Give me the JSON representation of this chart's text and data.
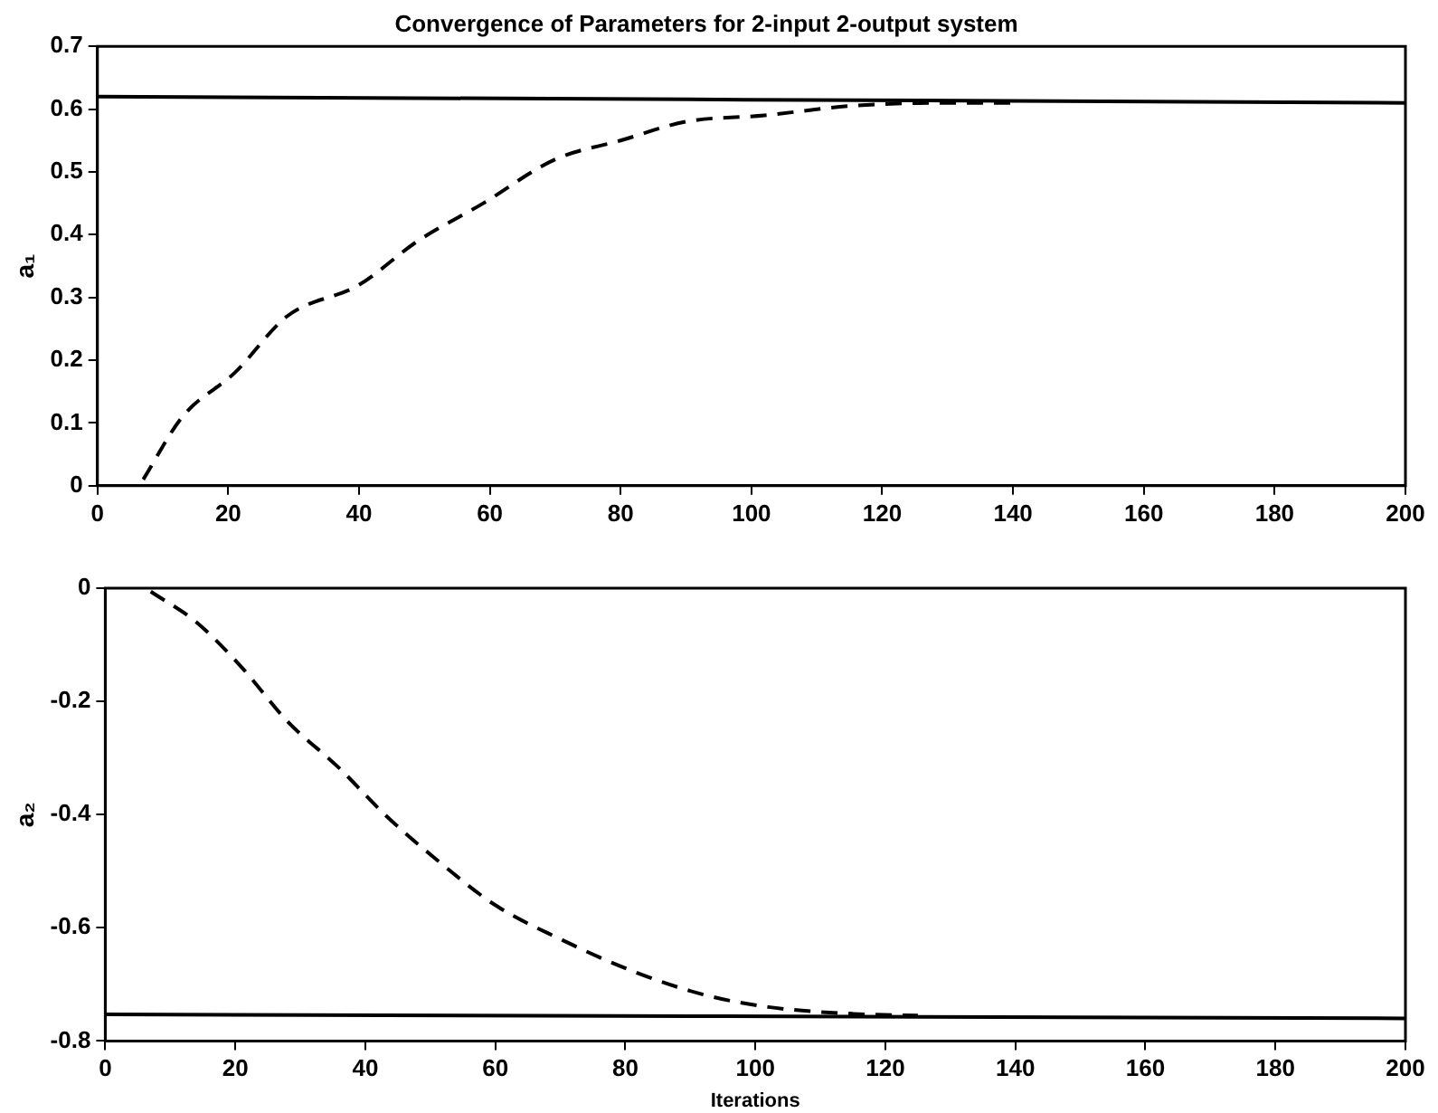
{
  "chart_data": [
    {
      "type": "line",
      "title": "Convergence of Parameters for 2-input 2-output system",
      "ylabel": "a₁",
      "xlim": [
        0,
        200
      ],
      "ylim": [
        0,
        0.7
      ],
      "xticks": [
        0,
        20,
        40,
        60,
        80,
        100,
        120,
        140,
        160,
        180,
        200
      ],
      "yticks": [
        0,
        0.1,
        0.2,
        0.3,
        0.4,
        0.5,
        0.6,
        0.7
      ],
      "grid": false,
      "legend": false,
      "marker": "none",
      "series": [
        {
          "color": "#000000",
          "line_style": "solid",
          "x": [
            0,
            200
          ],
          "values": [
            0.62,
            0.61
          ]
        },
        {
          "color": "#000000",
          "line_style": "dashed",
          "x": [
            7,
            13,
            21,
            29,
            40,
            49,
            59,
            70,
            80,
            90,
            102,
            115,
            130,
            140
          ],
          "values": [
            0.01,
            0.11,
            0.18,
            0.27,
            0.32,
            0.39,
            0.45,
            0.52,
            0.55,
            0.58,
            0.59,
            0.605,
            0.61,
            0.61
          ]
        }
      ]
    },
    {
      "type": "line",
      "xlabel": "Iterations",
      "ylabel": "a₂",
      "xlim": [
        0,
        200
      ],
      "ylim": [
        -0.8,
        0
      ],
      "xticks": [
        0,
        20,
        40,
        60,
        80,
        100,
        120,
        140,
        160,
        180,
        200
      ],
      "yticks": [
        -0.8,
        -0.6,
        -0.4,
        -0.2,
        0
      ],
      "grid": false,
      "legend": false,
      "marker": "none",
      "series": [
        {
          "color": "#000000",
          "line_style": "solid",
          "x": [
            0,
            200
          ],
          "values": [
            -0.753,
            -0.76
          ]
        },
        {
          "color": "#000000",
          "line_style": "dashed",
          "x": [
            7,
            14,
            21,
            28,
            36,
            43,
            51,
            60,
            70,
            81,
            92,
            102,
            115,
            125
          ],
          "values": [
            -0.006,
            -0.06,
            -0.14,
            -0.235,
            -0.318,
            -0.4,
            -0.48,
            -0.56,
            -0.62,
            -0.676,
            -0.718,
            -0.74,
            -0.752,
            -0.755
          ]
        }
      ]
    }
  ]
}
